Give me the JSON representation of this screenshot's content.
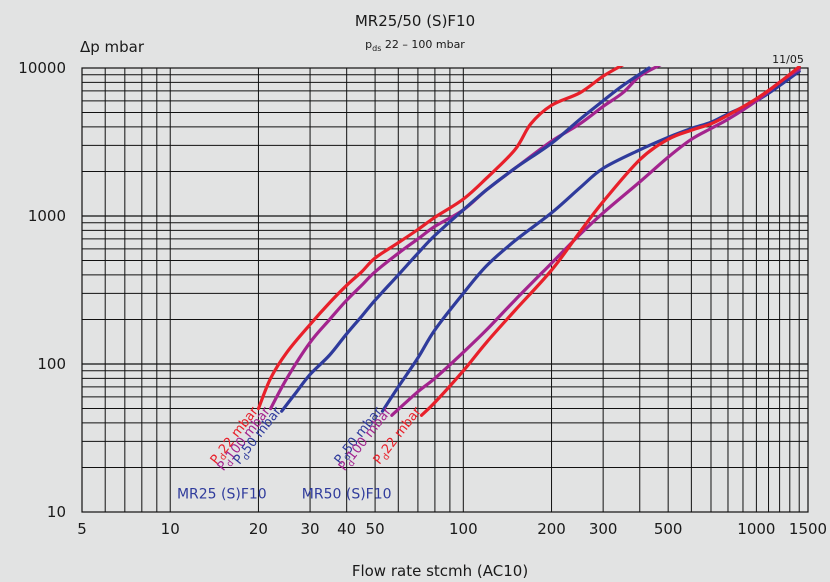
{
  "chart_data": {
    "type": "line",
    "title": "MR25/50 (S)F10",
    "subtitle_base": "p",
    "subtitle_sub": "ds",
    "subtitle_rest": " 22 – 100 mbar",
    "date_note": "11/05",
    "xlabel": "Flow rate stcmh (AC10)",
    "ylabel": "Δp mbar",
    "xscale": "log",
    "yscale": "log",
    "xlim": [
      5,
      1500
    ],
    "ylim": [
      10,
      10000
    ],
    "grid": true,
    "xticks": [
      {
        "v": 5,
        "label": "5"
      },
      {
        "v": 10,
        "label": "10"
      },
      {
        "v": 20,
        "label": "20"
      },
      {
        "v": 30,
        "label": "30"
      },
      {
        "v": 40,
        "label": "40"
      },
      {
        "v": 50,
        "label": "50"
      },
      {
        "v": 100,
        "label": "100"
      },
      {
        "v": 200,
        "label": "200"
      },
      {
        "v": 300,
        "label": "300"
      },
      {
        "v": 500,
        "label": "500"
      },
      {
        "v": 1000,
        "label": "1000"
      },
      {
        "v": 1500,
        "label": "1500"
      }
    ],
    "yticks": [
      {
        "v": 10,
        "label": "10"
      },
      {
        "v": 100,
        "label": "100"
      },
      {
        "v": 1000,
        "label": "1000"
      },
      {
        "v": 10000,
        "label": "10000"
      }
    ],
    "series": [
      {
        "name": "MR25 (S)F10 pd 22 mbar",
        "color": "#e8202a",
        "label_base": "P",
        "label_sub": "d",
        "label_rest": "22 mbar",
        "label_anchor": [
          20,
          48
        ],
        "points": [
          [
            20,
            50
          ],
          [
            22,
            80
          ],
          [
            25,
            120
          ],
          [
            30,
            185
          ],
          [
            35,
            260
          ],
          [
            40,
            340
          ],
          [
            45,
            420
          ],
          [
            50,
            520
          ],
          [
            60,
            660
          ],
          [
            70,
            810
          ],
          [
            80,
            980
          ],
          [
            100,
            1300
          ],
          [
            120,
            1800
          ],
          [
            150,
            2800
          ],
          [
            170,
            4200
          ],
          [
            200,
            5600
          ],
          [
            250,
            6800
          ],
          [
            300,
            8800
          ],
          [
            350,
            10500
          ]
        ]
      },
      {
        "name": "MR25 (S)F10 pd 100 mbar",
        "color": "#a3248e",
        "label_base": "P",
        "label_sub": "d",
        "label_rest": "100 mbar",
        "label_anchor": [
          22,
          48
        ],
        "points": [
          [
            22,
            50
          ],
          [
            25,
            80
          ],
          [
            30,
            140
          ],
          [
            35,
            200
          ],
          [
            40,
            270
          ],
          [
            45,
            340
          ],
          [
            50,
            420
          ],
          [
            60,
            560
          ],
          [
            70,
            700
          ],
          [
            80,
            850
          ],
          [
            100,
            1100
          ],
          [
            120,
            1500
          ],
          [
            150,
            2100
          ],
          [
            200,
            3200
          ],
          [
            250,
            4200
          ],
          [
            300,
            5500
          ],
          [
            350,
            6800
          ],
          [
            400,
            8800
          ],
          [
            470,
            10500
          ]
        ]
      },
      {
        "name": "MR25 (S)F10 pd 50 mbar",
        "color": "#2f3b9c",
        "label_base": "P",
        "label_sub": "d",
        "label_rest": "50 mbar",
        "label_anchor": [
          24,
          48
        ],
        "points": [
          [
            24,
            48
          ],
          [
            27,
            65
          ],
          [
            30,
            85
          ],
          [
            35,
            115
          ],
          [
            40,
            160
          ],
          [
            45,
            210
          ],
          [
            50,
            270
          ],
          [
            60,
            400
          ],
          [
            70,
            560
          ],
          [
            80,
            740
          ],
          [
            100,
            1100
          ],
          [
            120,
            1500
          ],
          [
            150,
            2100
          ],
          [
            200,
            3100
          ],
          [
            250,
            4500
          ],
          [
            300,
            6000
          ],
          [
            350,
            7600
          ],
          [
            430,
            10000
          ]
        ]
      },
      {
        "name": "MR50 (S)F10 pd 50 mbar",
        "color": "#2f3b9c",
        "label_base": "P",
        "label_sub": "d",
        "label_rest": "50 mbar",
        "label_anchor": [
          53,
          48
        ],
        "points": [
          [
            53,
            48
          ],
          [
            60,
            70
          ],
          [
            70,
            110
          ],
          [
            80,
            170
          ],
          [
            100,
            300
          ],
          [
            120,
            460
          ],
          [
            150,
            680
          ],
          [
            200,
            1050
          ],
          [
            250,
            1550
          ],
          [
            300,
            2100
          ],
          [
            400,
            2800
          ],
          [
            500,
            3400
          ],
          [
            600,
            3900
          ],
          [
            700,
            4300
          ],
          [
            800,
            4900
          ],
          [
            1000,
            6000
          ],
          [
            1200,
            7600
          ],
          [
            1400,
            9500
          ]
        ]
      },
      {
        "name": "MR50 (S)F10 pd 100 mbar",
        "color": "#a3248e",
        "label_base": "P",
        "label_sub": "d",
        "label_rest": "100 mbar",
        "label_anchor": [
          57,
          48
        ],
        "points": [
          [
            57,
            45
          ],
          [
            70,
            65
          ],
          [
            80,
            80
          ],
          [
            100,
            120
          ],
          [
            120,
            170
          ],
          [
            150,
            270
          ],
          [
            200,
            480
          ],
          [
            250,
            750
          ],
          [
            300,
            1050
          ],
          [
            400,
            1700
          ],
          [
            500,
            2500
          ],
          [
            600,
            3300
          ],
          [
            700,
            3900
          ],
          [
            800,
            4500
          ],
          [
            1000,
            6000
          ],
          [
            1200,
            8000
          ],
          [
            1400,
            9800
          ]
        ]
      },
      {
        "name": "MR50 (S)F10 pd 22 mbar",
        "color": "#e8202a",
        "label_base": "P",
        "label_sub": "d",
        "label_rest": "22 mbar",
        "label_anchor": [
          72,
          48
        ],
        "points": [
          [
            72,
            45
          ],
          [
            80,
            55
          ],
          [
            100,
            90
          ],
          [
            120,
            140
          ],
          [
            150,
            230
          ],
          [
            200,
            430
          ],
          [
            250,
            780
          ],
          [
            300,
            1250
          ],
          [
            400,
            2400
          ],
          [
            500,
            3300
          ],
          [
            600,
            3800
          ],
          [
            700,
            4200
          ],
          [
            800,
            4800
          ],
          [
            1000,
            6200
          ],
          [
            1200,
            8000
          ],
          [
            1400,
            10200
          ]
        ]
      }
    ],
    "group_labels": [
      {
        "text": "MR25 (S)F10",
        "color": "#2f3b9c",
        "at": [
          15,
          12.3
        ]
      },
      {
        "text": "MR50 (S)F10",
        "color": "#2f3b9c",
        "at": [
          40,
          12.3
        ]
      }
    ]
  }
}
